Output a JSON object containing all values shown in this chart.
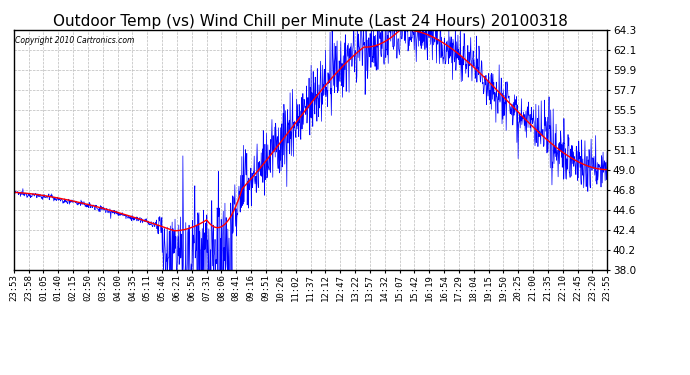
{
  "title": "Outdoor Temp (vs) Wind Chill per Minute (Last 24 Hours) 20100318",
  "copyright_text": "Copyright 2010 Cartronics.com",
  "yticks": [
    38.0,
    40.2,
    42.4,
    44.6,
    46.8,
    49.0,
    51.1,
    53.3,
    55.5,
    57.7,
    59.9,
    62.1,
    64.3
  ],
  "ymin": 38.0,
  "ymax": 64.3,
  "bg_color": "#ffffff",
  "plot_bg_color": "#ffffff",
  "grid_color": "#bbbbbb",
  "line1_color": "#0000ff",
  "line2_color": "#ff0000",
  "title_fontsize": 11,
  "tick_fontsize": 6.5,
  "xtick_labels": [
    "23:53",
    "23:58",
    "01:05",
    "01:40",
    "02:15",
    "02:50",
    "03:25",
    "04:00",
    "04:35",
    "05:11",
    "05:46",
    "06:21",
    "06:56",
    "07:31",
    "08:06",
    "08:41",
    "09:16",
    "09:51",
    "10:26",
    "11:02",
    "11:37",
    "12:12",
    "12:47",
    "13:22",
    "13:57",
    "14:32",
    "15:07",
    "15:42",
    "16:19",
    "16:54",
    "17:29",
    "18:04",
    "19:15",
    "19:50",
    "20:25",
    "21:00",
    "21:35",
    "22:10",
    "22:45",
    "23:20",
    "23:55"
  ]
}
